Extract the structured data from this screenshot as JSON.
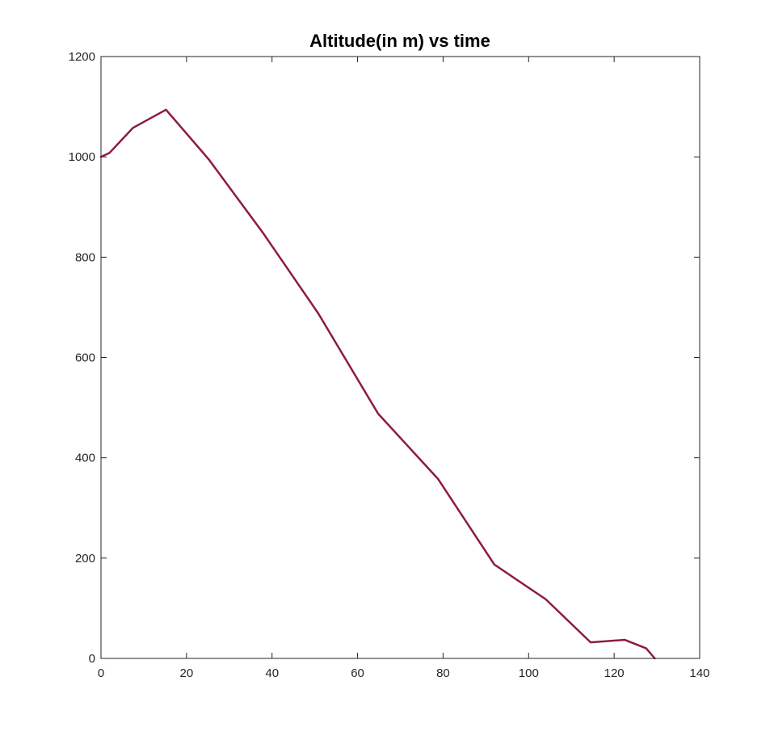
{
  "chart_data": {
    "type": "line",
    "title": "Altitude(in m) vs time",
    "xlabel": "",
    "ylabel": "",
    "xlim": [
      0,
      140
    ],
    "ylim": [
      0,
      1200
    ],
    "xticks": [
      0,
      20,
      40,
      60,
      80,
      100,
      120,
      140
    ],
    "yticks": [
      0,
      200,
      400,
      600,
      800,
      1000,
      1200
    ],
    "grid": false,
    "series": [
      {
        "color": "#8E1B3E",
        "x": [
          0,
          2,
          7.5,
          15.2,
          25.2,
          38,
          50.8,
          64.8,
          78.8,
          92,
          104,
          114.5,
          122.5,
          127.5,
          129.5
        ],
        "y": [
          1000,
          1008,
          1058,
          1094,
          995,
          847,
          688,
          488,
          358,
          187,
          118,
          32,
          37,
          20,
          0
        ]
      }
    ]
  }
}
